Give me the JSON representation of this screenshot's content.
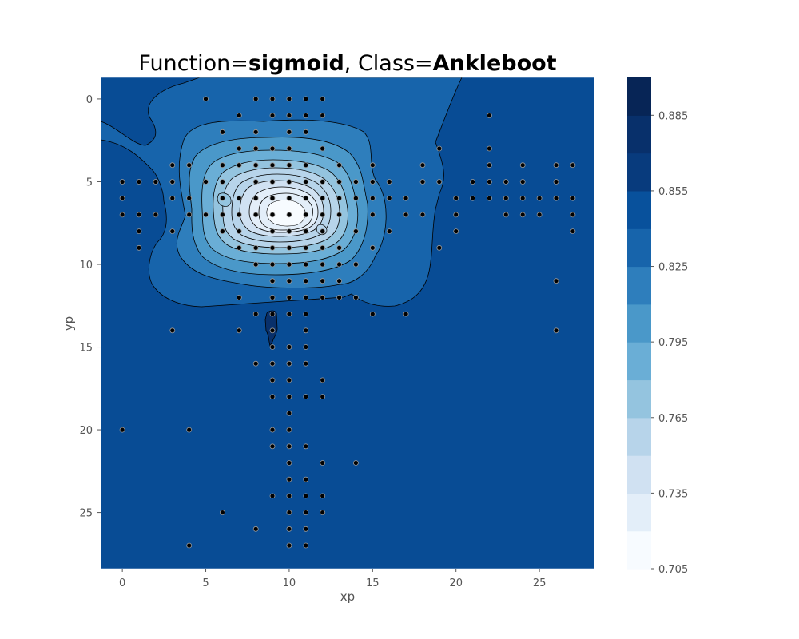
{
  "chart_data": {
    "type": "scatter",
    "subtype": "filled-contour",
    "title": {
      "prefix": "Function=",
      "function_name": "sigmoid",
      "separator": ", Class=",
      "class_name": "Ankleboot"
    },
    "xlabel": "xp",
    "ylabel": "yp",
    "xlim": [
      -1.3,
      28.3
    ],
    "ylim": [
      28.4,
      -1.3
    ],
    "y_inverted": true,
    "grid": false,
    "x_ticks": [
      0,
      5,
      10,
      15,
      20,
      25
    ],
    "y_ticks": [
      0,
      5,
      10,
      15,
      20,
      25
    ],
    "colormap": "Blues",
    "colorbar": {
      "min": 0.705,
      "max": 0.9,
      "levels": [
        0.705,
        0.72,
        0.735,
        0.75,
        0.765,
        0.78,
        0.795,
        0.81,
        0.825,
        0.84,
        0.855,
        0.87,
        0.885,
        0.9
      ],
      "tick_values": [
        0.705,
        0.735,
        0.765,
        0.795,
        0.825,
        0.855,
        0.885
      ],
      "tick_labels": [
        "0.705",
        "0.735",
        "0.765",
        "0.795",
        "0.825",
        "0.855",
        "0.885"
      ],
      "colors": [
        "#f7fbff",
        "#e3eef9",
        "#d0e1f2",
        "#b7d4ea",
        "#94c4df",
        "#6aaed6",
        "#4a98c9",
        "#2e7ebc",
        "#1764ab",
        "#08519c",
        "#083b7d",
        "#08306b",
        "#072556"
      ],
      "background_color": "#084c95"
    },
    "points": [
      [
        5,
        0
      ],
      [
        8,
        0
      ],
      [
        9,
        0
      ],
      [
        10,
        0
      ],
      [
        11,
        0
      ],
      [
        12,
        0
      ],
      [
        7,
        1
      ],
      [
        9,
        1
      ],
      [
        10,
        1
      ],
      [
        11,
        1
      ],
      [
        12,
        1
      ],
      [
        22,
        1
      ],
      [
        6,
        2
      ],
      [
        8,
        2
      ],
      [
        10,
        2
      ],
      [
        11,
        2
      ],
      [
        7,
        3
      ],
      [
        8,
        3
      ],
      [
        9,
        3
      ],
      [
        10,
        3
      ],
      [
        12,
        3
      ],
      [
        19,
        3
      ],
      [
        22,
        3
      ],
      [
        3,
        4
      ],
      [
        4,
        4
      ],
      [
        6,
        4
      ],
      [
        7,
        4
      ],
      [
        8,
        4
      ],
      [
        9,
        4
      ],
      [
        10,
        4
      ],
      [
        11,
        4
      ],
      [
        13,
        4
      ],
      [
        15,
        4
      ],
      [
        18,
        4
      ],
      [
        22,
        4
      ],
      [
        24,
        4
      ],
      [
        26,
        4
      ],
      [
        27,
        4
      ],
      [
        0,
        5
      ],
      [
        1,
        5
      ],
      [
        2,
        5
      ],
      [
        3,
        5
      ],
      [
        5,
        5
      ],
      [
        6,
        5
      ],
      [
        8,
        5
      ],
      [
        9,
        5
      ],
      [
        10,
        5
      ],
      [
        11,
        5
      ],
      [
        12,
        5
      ],
      [
        13,
        5
      ],
      [
        14,
        5
      ],
      [
        15,
        5
      ],
      [
        16,
        5
      ],
      [
        18,
        5
      ],
      [
        19,
        5
      ],
      [
        21,
        5
      ],
      [
        22,
        5
      ],
      [
        23,
        5
      ],
      [
        24,
        5
      ],
      [
        26,
        5
      ],
      [
        0,
        6
      ],
      [
        3,
        6
      ],
      [
        4,
        6
      ],
      [
        6,
        6
      ],
      [
        7,
        6
      ],
      [
        8,
        6
      ],
      [
        9,
        6
      ],
      [
        10,
        6
      ],
      [
        11,
        6
      ],
      [
        12,
        6
      ],
      [
        13,
        6
      ],
      [
        14,
        6
      ],
      [
        15,
        6
      ],
      [
        16,
        6
      ],
      [
        17,
        6
      ],
      [
        20,
        6
      ],
      [
        21,
        6
      ],
      [
        22,
        6
      ],
      [
        23,
        6
      ],
      [
        24,
        6
      ],
      [
        25,
        6
      ],
      [
        26,
        6
      ],
      [
        27,
        6
      ],
      [
        0,
        7
      ],
      [
        1,
        7
      ],
      [
        2,
        7
      ],
      [
        4,
        7
      ],
      [
        5,
        7
      ],
      [
        6,
        7
      ],
      [
        7,
        7
      ],
      [
        8,
        7
      ],
      [
        9,
        7
      ],
      [
        10,
        7
      ],
      [
        11,
        7
      ],
      [
        12,
        7
      ],
      [
        13,
        7
      ],
      [
        15,
        7
      ],
      [
        17,
        7
      ],
      [
        18,
        7
      ],
      [
        20,
        7
      ],
      [
        23,
        7
      ],
      [
        24,
        7
      ],
      [
        25,
        7
      ],
      [
        27,
        7
      ],
      [
        1,
        8
      ],
      [
        3,
        8
      ],
      [
        6,
        8
      ],
      [
        7,
        8
      ],
      [
        9,
        8
      ],
      [
        10,
        8
      ],
      [
        11,
        8
      ],
      [
        12,
        8
      ],
      [
        14,
        8
      ],
      [
        16,
        8
      ],
      [
        20,
        8
      ],
      [
        27,
        8
      ],
      [
        1,
        9
      ],
      [
        7,
        9
      ],
      [
        8,
        9
      ],
      [
        9,
        9
      ],
      [
        10,
        9
      ],
      [
        11,
        9
      ],
      [
        12,
        9
      ],
      [
        13,
        9
      ],
      [
        15,
        9
      ],
      [
        19,
        9
      ],
      [
        8,
        10
      ],
      [
        9,
        10
      ],
      [
        10,
        10
      ],
      [
        11,
        10
      ],
      [
        12,
        10
      ],
      [
        13,
        10
      ],
      [
        14,
        10
      ],
      [
        9,
        11
      ],
      [
        10,
        11
      ],
      [
        11,
        11
      ],
      [
        12,
        11
      ],
      [
        13,
        11
      ],
      [
        26,
        11
      ],
      [
        7,
        12
      ],
      [
        9,
        12
      ],
      [
        10,
        12
      ],
      [
        11,
        12
      ],
      [
        12,
        12
      ],
      [
        13,
        12
      ],
      [
        14,
        12
      ],
      [
        8,
        13
      ],
      [
        9,
        13
      ],
      [
        10,
        13
      ],
      [
        11,
        13
      ],
      [
        15,
        13
      ],
      [
        17,
        13
      ],
      [
        3,
        14
      ],
      [
        7,
        14
      ],
      [
        9,
        14
      ],
      [
        11,
        14
      ],
      [
        26,
        14
      ],
      [
        9,
        15
      ],
      [
        10,
        15
      ],
      [
        11,
        15
      ],
      [
        8,
        16
      ],
      [
        9,
        16
      ],
      [
        10,
        16
      ],
      [
        11,
        16
      ],
      [
        9,
        17
      ],
      [
        10,
        17
      ],
      [
        12,
        17
      ],
      [
        9,
        18
      ],
      [
        10,
        18
      ],
      [
        11,
        18
      ],
      [
        12,
        18
      ],
      [
        10,
        19
      ],
      [
        0,
        20
      ],
      [
        4,
        20
      ],
      [
        9,
        20
      ],
      [
        10,
        20
      ],
      [
        9,
        21
      ],
      [
        10,
        21
      ],
      [
        11,
        21
      ],
      [
        10,
        22
      ],
      [
        12,
        22
      ],
      [
        14,
        22
      ],
      [
        10,
        23
      ],
      [
        11,
        23
      ],
      [
        9,
        24
      ],
      [
        10,
        24
      ],
      [
        11,
        24
      ],
      [
        12,
        24
      ],
      [
        6,
        25
      ],
      [
        10,
        25
      ],
      [
        11,
        25
      ],
      [
        12,
        25
      ],
      [
        8,
        26
      ],
      [
        10,
        26
      ],
      [
        11,
        26
      ],
      [
        4,
        27
      ],
      [
        10,
        27
      ],
      [
        11,
        27
      ]
    ]
  }
}
